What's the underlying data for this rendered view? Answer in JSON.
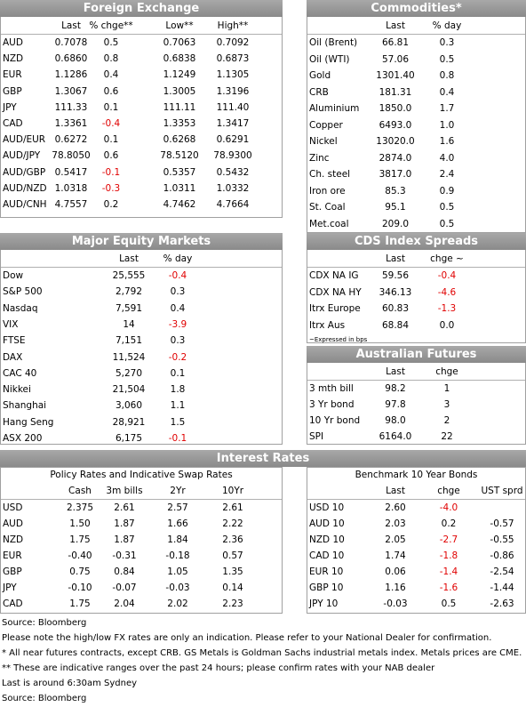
{
  "foreign_exchange": {
    "title": "Foreign Exchange",
    "columns": [
      "Last",
      "% chge**",
      "Low**",
      "High**"
    ],
    "rows": [
      [
        "AUD",
        "0.7078",
        "0.5",
        "0.7063",
        "0.7092"
      ],
      [
        "NZD",
        "0.6860",
        "0.8",
        "0.6838",
        "0.6873"
      ],
      [
        "EUR",
        "1.1286",
        "0.4",
        "1.1249",
        "1.1305"
      ],
      [
        "GBP",
        "1.3067",
        "0.6",
        "1.3005",
        "1.3196"
      ],
      [
        "JPY",
        "111.33",
        "0.1",
        "111.11",
        "111.40"
      ],
      [
        "CAD",
        "1.3361",
        "-0.4",
        "1.3353",
        "1.3417"
      ],
      [
        "AUD/EUR",
        "0.6272",
        "0.1",
        "0.6268",
        "0.6291"
      ],
      [
        "AUD/JPY",
        "78.8050",
        "0.6",
        "78.5120",
        "78.9300"
      ],
      [
        "AUD/GBP",
        "0.5417",
        "-0.1",
        "0.5357",
        "0.5432"
      ],
      [
        "AUD/NZD",
        "1.0318",
        "-0.3",
        "1.0311",
        "1.0332"
      ],
      [
        "AUD/CNH",
        "4.7557",
        "0.2",
        "4.7462",
        "4.7664"
      ]
    ]
  },
  "commodities": {
    "title": "Commodities*",
    "columns": [
      "Last",
      "% day"
    ],
    "rows": [
      [
        "Oil (Brent)",
        "66.81",
        "0.3"
      ],
      [
        "Oil (WTI)",
        "57.06",
        "0.5"
      ],
      [
        "Gold",
        "1301.40",
        "0.8"
      ],
      [
        "CRB",
        "181.31",
        "0.4"
      ],
      [
        "Aluminium",
        "1850.0",
        "1.7"
      ],
      [
        "Copper",
        "6493.0",
        "1.0"
      ],
      [
        "Nickel",
        "13020.0",
        "1.6"
      ],
      [
        "Zinc",
        "2874.0",
        "4.0"
      ],
      [
        "Ch. steel",
        "3817.0",
        "2.4"
      ],
      [
        "Iron ore",
        "85.3",
        "0.9"
      ],
      [
        "St. Coal",
        "95.1",
        "0.5"
      ],
      [
        "Met.coal",
        "209.0",
        "0.5"
      ]
    ]
  },
  "equity_markets": {
    "title": "Major Equity Markets",
    "columns": [
      "Last",
      "% day"
    ],
    "rows": [
      [
        "Dow",
        "25,555",
        "-0.4"
      ],
      [
        "S&P 500",
        "2,792",
        "0.3"
      ],
      [
        "Nasdaq",
        "7,591",
        "0.4"
      ],
      [
        "VIX",
        "14",
        "-3.9"
      ],
      [
        "FTSE",
        "7,151",
        "0.3"
      ],
      [
        "DAX",
        "11,524",
        "-0.2"
      ],
      [
        "CAC 40",
        "5,270",
        "0.1"
      ],
      [
        "Nikkei",
        "21,504",
        "1.8"
      ],
      [
        "Shanghai",
        "3,060",
        "1.1"
      ],
      [
        "Hang Seng",
        "28,921",
        "1.5"
      ],
      [
        "ASX 200",
        "6,175",
        "-0.1"
      ]
    ]
  },
  "cds_spreads": {
    "title": "CDS Index Spreads",
    "columns": [
      "Last",
      "chge ~"
    ],
    "rows": [
      [
        "CDX NA IG",
        "59.56",
        "-0.4"
      ],
      [
        "CDX NA HY",
        "346.13",
        "-4.6"
      ],
      [
        "Itrx Europe",
        "60.83",
        "-1.3"
      ],
      [
        "Itrx Aus",
        "68.84",
        "0.0"
      ]
    ],
    "note": "~Expressed in bps"
  },
  "australian_futures": {
    "title": "Australian Futures",
    "columns": [
      "Last",
      "chge"
    ],
    "rows": [
      [
        "3 mth bill",
        "98.2",
        "1"
      ],
      [
        "3 Yr bond",
        "97.8",
        "3"
      ],
      [
        "10 Yr bond",
        "98.0",
        "2"
      ],
      [
        "SPI",
        "6164.0",
        "22"
      ]
    ]
  },
  "interest_rates": {
    "title": "Interest Rates",
    "policy_rates": {
      "subtitle": "Policy Rates and Indicative Swap Rates",
      "columns": [
        "Cash",
        "3m bills",
        "2Yr",
        "10Yr"
      ],
      "rows": [
        [
          "USD",
          "2.375",
          "2.61",
          "2.57",
          "2.61"
        ],
        [
          "AUD",
          "1.50",
          "1.87",
          "1.66",
          "2.22"
        ],
        [
          "NZD",
          "1.75",
          "1.87",
          "1.84",
          "2.36"
        ],
        [
          "EUR",
          "-0.40",
          "-0.31",
          "-0.18",
          "0.57"
        ],
        [
          "GBP",
          "0.75",
          "0.84",
          "1.05",
          "1.35"
        ],
        [
          "JPY",
          "-0.10",
          "-0.07",
          "-0.03",
          "0.14"
        ],
        [
          "CAD",
          "1.75",
          "2.04",
          "2.02",
          "2.23"
        ]
      ]
    },
    "bonds": {
      "subtitle": "Benchmark 10 Year Bonds",
      "columns": [
        "Last",
        "chge",
        "UST sprd"
      ],
      "rows": [
        [
          "USD 10",
          "2.60",
          "-4.0"
        ],
        [
          "AUD 10",
          "2.03",
          "0.2",
          "-0.57"
        ],
        [
          "NZD 10",
          "2.05",
          "-2.7",
          "-0.55"
        ],
        [
          "CAD 10",
          "1.74",
          "-1.8",
          "-0.86"
        ],
        [
          "EUR 10",
          "0.06",
          "-1.4",
          "-2.54"
        ],
        [
          "GBP 10",
          "1.16",
          "-1.6",
          "-1.44"
        ],
        [
          "JPY 10",
          "-0.03",
          "0.5",
          "-2.63"
        ]
      ]
    }
  },
  "footnotes": [
    "Source: Bloomberg",
    "Please note the high/low FX rates are only an indication. Please refer to your National Dealer for confirmation.",
    "* All near futures contracts, except CRB. GS Metals is Goldman Sachs industrial metals index. Metals prices are CME.",
    "** These are indicative ranges over the past 24 hours; please confirm rates with your NAB dealer",
    "Last is around 6:30am Sydney",
    "Source: Bloomberg"
  ]
}
